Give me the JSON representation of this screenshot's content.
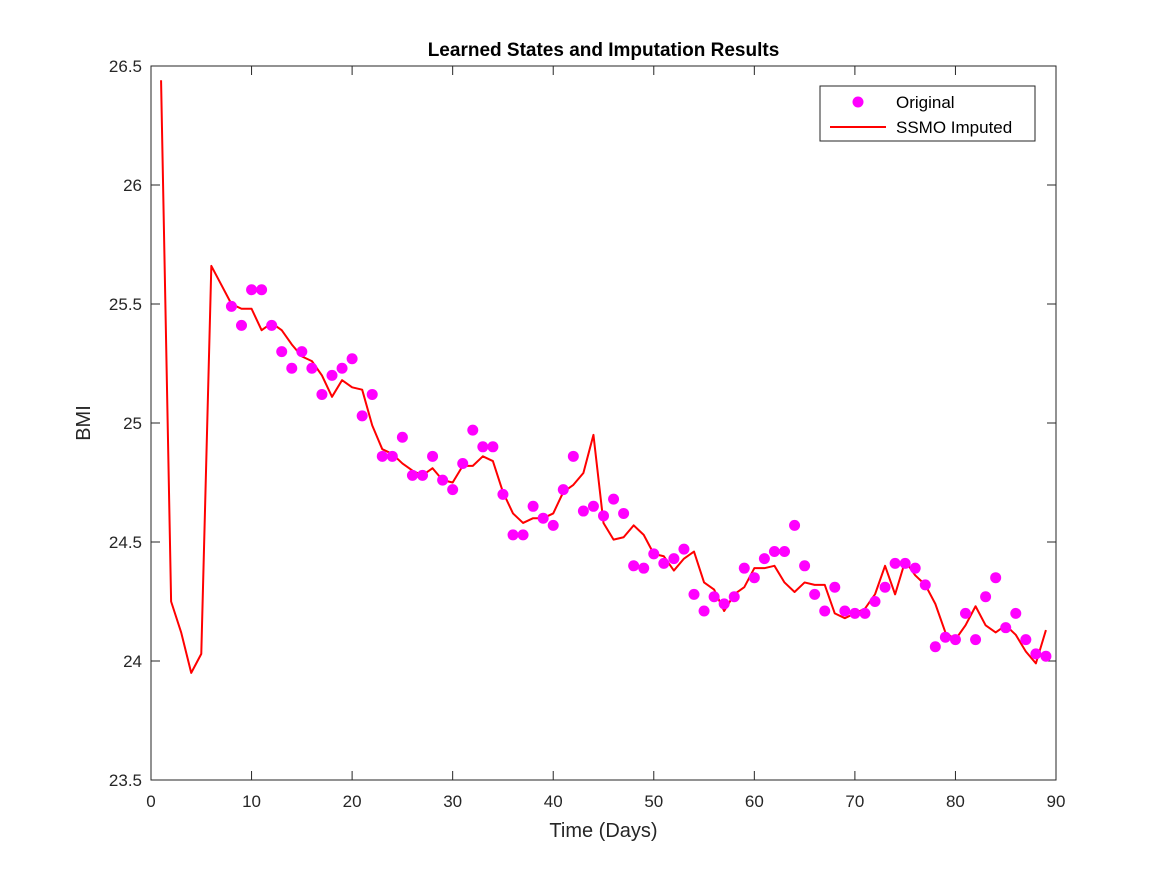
{
  "chart_data": {
    "type": "line",
    "title": "Learned States and Imputation Results",
    "xlabel": "Time (Days)",
    "ylabel": "BMI",
    "xlim": [
      0,
      90
    ],
    "ylim": [
      23.5,
      26.5
    ],
    "xticks": [
      0,
      10,
      20,
      30,
      40,
      50,
      60,
      70,
      80,
      90
    ],
    "yticks": [
      23.5,
      24,
      24.5,
      25,
      25.5,
      26,
      26.5
    ],
    "xtick_labels": [
      "0",
      "10",
      "20",
      "30",
      "40",
      "50",
      "60",
      "70",
      "80",
      "90"
    ],
    "ytick_labels": [
      "23.5",
      "24",
      "24.5",
      "25",
      "25.5",
      "26",
      "26.5"
    ],
    "grid": false,
    "legend_position": "top-right",
    "legend": [
      "Original",
      "SSMO Imputed"
    ],
    "series": [
      {
        "name": "Original",
        "kind": "scatter",
        "color": "#ff00ff",
        "x": [
          8,
          9,
          10,
          11,
          12,
          13,
          14,
          15,
          16,
          17,
          18,
          19,
          20,
          21,
          22,
          23,
          24,
          25,
          26,
          27,
          28,
          29,
          30,
          31,
          32,
          33,
          34,
          35,
          36,
          37,
          38,
          39,
          40,
          41,
          42,
          43,
          44,
          45,
          46,
          47,
          48,
          49,
          50,
          51,
          52,
          53,
          54,
          55,
          56,
          57,
          58,
          59,
          60,
          61,
          62,
          63,
          64,
          65,
          66,
          67,
          68,
          69,
          70,
          71,
          72,
          73,
          74,
          75,
          76,
          77,
          78,
          79,
          80,
          81,
          82,
          83,
          84,
          85,
          86,
          87,
          88,
          89
        ],
        "y": [
          25.49,
          25.41,
          25.56,
          25.56,
          25.41,
          25.3,
          25.23,
          25.3,
          25.23,
          25.12,
          25.2,
          25.23,
          25.27,
          25.03,
          25.12,
          24.86,
          24.86,
          24.94,
          24.78,
          24.78,
          24.86,
          24.76,
          24.72,
          24.83,
          24.97,
          24.9,
          24.9,
          24.7,
          24.53,
          24.53,
          24.65,
          24.6,
          24.57,
          24.72,
          24.86,
          24.63,
          24.65,
          24.61,
          24.68,
          24.62,
          24.4,
          24.39,
          24.45,
          24.41,
          24.43,
          24.47,
          24.28,
          24.21,
          24.27,
          24.24,
          24.27,
          24.39,
          24.35,
          24.43,
          24.46,
          24.46,
          24.57,
          24.4,
          24.28,
          24.21,
          24.31,
          24.21,
          24.2,
          24.2,
          24.25,
          24.31,
          24.41,
          24.41,
          24.39,
          24.32,
          24.06,
          24.1,
          24.09,
          24.2,
          24.09,
          24.27,
          24.35,
          24.14,
          24.2,
          24.09,
          24.03,
          24.02
        ]
      },
      {
        "name": "SSMO Imputed",
        "kind": "line",
        "color": "#ff0000",
        "x": [
          1,
          2,
          3,
          4,
          5,
          6,
          7,
          8,
          9,
          10,
          11,
          12,
          13,
          14,
          15,
          16,
          17,
          18,
          19,
          20,
          21,
          22,
          23,
          24,
          25,
          26,
          27,
          28,
          29,
          30,
          31,
          32,
          33,
          34,
          35,
          36,
          37,
          38,
          39,
          40,
          41,
          42,
          43,
          44,
          45,
          46,
          47,
          48,
          49,
          50,
          51,
          52,
          53,
          54,
          55,
          56,
          57,
          58,
          59,
          60,
          61,
          62,
          63,
          64,
          65,
          66,
          67,
          68,
          69,
          70,
          71,
          72,
          73,
          74,
          75,
          76,
          77,
          78,
          79,
          80,
          81,
          82,
          83,
          84,
          85,
          86,
          87,
          88,
          89
        ],
        "y": [
          26.44,
          24.25,
          24.12,
          23.95,
          24.03,
          25.66,
          25.58,
          25.5,
          25.48,
          25.48,
          25.39,
          25.42,
          25.39,
          25.33,
          25.28,
          25.26,
          25.2,
          25.11,
          25.18,
          25.15,
          25.14,
          24.99,
          24.89,
          24.87,
          24.83,
          24.8,
          24.78,
          24.81,
          24.76,
          24.75,
          24.82,
          24.82,
          24.86,
          24.84,
          24.71,
          24.62,
          24.58,
          24.6,
          24.6,
          24.62,
          24.71,
          24.74,
          24.79,
          24.95,
          24.58,
          24.51,
          24.52,
          24.57,
          24.53,
          24.45,
          24.44,
          24.38,
          24.43,
          24.46,
          24.33,
          24.3,
          24.21,
          24.28,
          24.31,
          24.39,
          24.39,
          24.4,
          24.33,
          24.29,
          24.33,
          24.32,
          24.32,
          24.2,
          24.18,
          24.2,
          24.22,
          24.28,
          24.4,
          24.28,
          24.42,
          24.36,
          24.32,
          24.24,
          24.12,
          24.09,
          24.15,
          24.23,
          24.15,
          24.12,
          24.15,
          24.11,
          24.04,
          23.99,
          24.13
        ]
      }
    ]
  }
}
